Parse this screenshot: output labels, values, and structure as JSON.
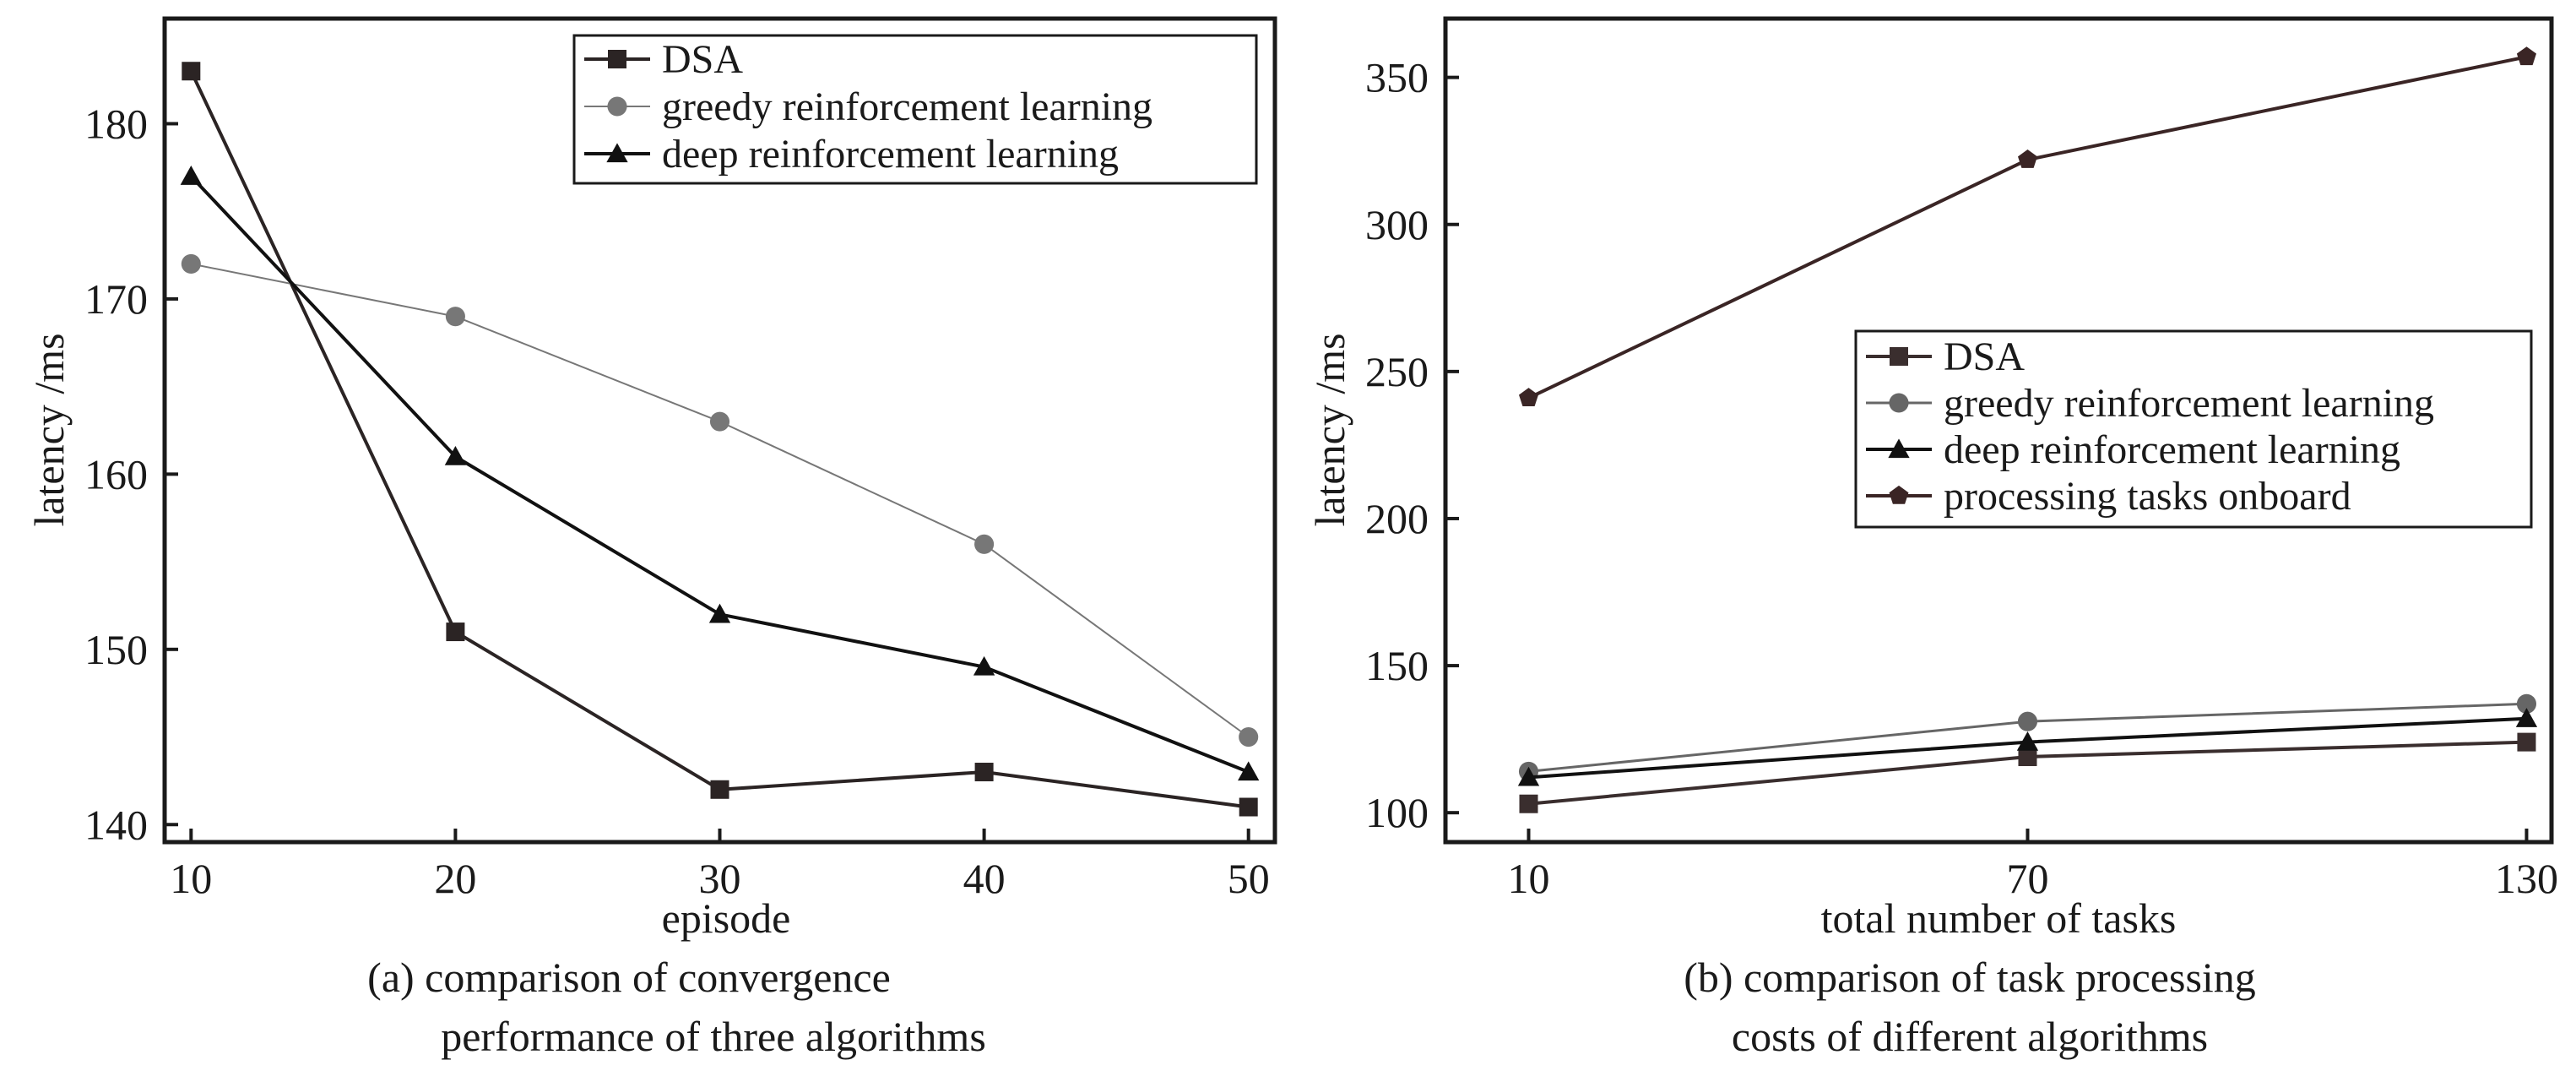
{
  "chart_data": [
    {
      "type": "line",
      "title": "",
      "xlabel": "episode",
      "ylabel": "latency /ms",
      "caption": [
        "(a) comparison of convergence",
        "performance of three algorithms"
      ],
      "x": [
        10,
        20,
        30,
        40,
        50
      ],
      "xlim": [
        9,
        51
      ],
      "ylim": [
        139,
        186
      ],
      "xticks": [
        10,
        20,
        30,
        40,
        50
      ],
      "yticks": [
        140,
        150,
        160,
        170,
        180
      ],
      "grid": false,
      "legend_position": "top-right",
      "series": [
        {
          "name": "DSA",
          "marker": "square",
          "color": "#2b2424",
          "values": [
            183,
            151,
            142,
            143,
            141
          ]
        },
        {
          "name": "greedy reinforcement learning",
          "marker": "circle",
          "color": "#777777",
          "values": [
            172,
            169,
            163,
            156,
            145
          ]
        },
        {
          "name": "deep reinforcement learning",
          "marker": "triangle",
          "color": "#111111",
          "values": [
            177,
            161,
            152,
            149,
            143
          ]
        }
      ]
    },
    {
      "type": "line",
      "title": "",
      "xlabel": "total number of tasks",
      "ylabel": "latency /ms",
      "caption": [
        "(b) comparison of task processing",
        "costs of different algorithms"
      ],
      "x": [
        10,
        70,
        130
      ],
      "xlim": [
        0,
        133
      ],
      "ylim": [
        90,
        370
      ],
      "xticks": [
        10,
        70,
        130
      ],
      "yticks": [
        100,
        150,
        200,
        250,
        300,
        350
      ],
      "grid": false,
      "legend_position": "center-right",
      "series": [
        {
          "name": "DSA",
          "marker": "square",
          "color": "#3a2e2e",
          "values": [
            103,
            119,
            124
          ]
        },
        {
          "name": "greedy reinforcement learning",
          "marker": "circle",
          "color": "#666666",
          "values": [
            114,
            131,
            137
          ]
        },
        {
          "name": "deep reinforcement learning",
          "marker": "triangle",
          "color": "#111111",
          "values": [
            112,
            124,
            132
          ]
        },
        {
          "name": "processing tasks onboard",
          "marker": "pentagon",
          "color": "#3a2525",
          "values": [
            241,
            322,
            357
          ]
        }
      ]
    }
  ]
}
